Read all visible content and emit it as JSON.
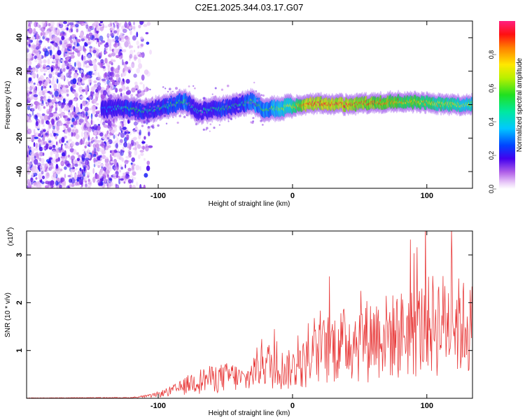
{
  "title": "C2E1.2025.344.03.17.G07",
  "colors": {
    "line": "#e83a3a",
    "purple": "#6a1fd6",
    "frame": "#000000"
  },
  "chart_data": [
    {
      "type": "heatmap",
      "xlabel": "Height of straight line (km)",
      "ylabel": "Frequency (Hz)",
      "xlim": [
        -198,
        134
      ],
      "ylim": [
        -50,
        50
      ],
      "xticks": [
        -100,
        0,
        100
      ],
      "yticks": [
        -40,
        -20,
        0,
        20,
        40
      ],
      "colorbar": {
        "label": "Normalized spectral amplitude",
        "range": [
          0,
          1
        ],
        "ticks": [
          "0.0",
          "0.2",
          "0.4",
          "0.6",
          "0.8"
        ]
      },
      "noise_region": {
        "x": [
          -198,
          -105
        ],
        "y": [
          -50,
          50
        ]
      },
      "ridge": {
        "x": [
          -142,
          -130,
          -120,
          -110,
          -100,
          -90,
          -80,
          -70,
          -60,
          -50,
          -40,
          -30,
          -20,
          -10,
          0,
          10,
          20,
          40,
          60,
          80,
          100,
          120,
          134
        ],
        "y": [
          -3,
          -2,
          -3,
          -4,
          -2,
          0,
          2,
          -4,
          -3,
          -2,
          0,
          2,
          -3,
          -2,
          -1,
          0,
          1,
          0,
          1,
          2,
          1,
          0,
          0
        ],
        "amplitude": [
          0.3,
          0.45,
          0.55,
          0.5,
          0.5,
          0.55,
          0.6,
          0.45,
          0.5,
          0.55,
          0.5,
          0.6,
          0.6,
          0.65,
          0.75,
          0.95,
          0.95,
          0.95,
          0.9,
          0.85,
          0.8,
          0.75,
          0.7
        ]
      }
    },
    {
      "type": "line",
      "xlabel": "Height of straight line (km)",
      "ylabel": "SNR (10 * v/v)",
      "exponent_label": "(x10",
      "exponent_sup": "4",
      "exponent_close": ")",
      "xlim": [
        -198,
        134
      ],
      "ylim": [
        0,
        3.5
      ],
      "xticks": [
        -100,
        0,
        100
      ],
      "yticks": [
        1,
        2,
        3
      ],
      "envelope": {
        "x": [
          -198,
          -120,
          -105,
          -95,
          -85,
          -75,
          -65,
          -55,
          -45,
          -35,
          -28,
          -22,
          -15,
          -5,
          5,
          15,
          25,
          35,
          45,
          55,
          65,
          75,
          85,
          95,
          105,
          115,
          125,
          134
        ],
        "y": [
          0.01,
          0.02,
          0.08,
          0.18,
          0.3,
          0.5,
          0.6,
          0.65,
          0.7,
          0.55,
          0.9,
          1.2,
          1.0,
          0.9,
          1.0,
          1.3,
          1.6,
          1.7,
          1.8,
          1.9,
          2.0,
          2.0,
          2.1,
          2.2,
          2.4,
          2.4,
          2.3,
          2.2
        ]
      }
    }
  ]
}
